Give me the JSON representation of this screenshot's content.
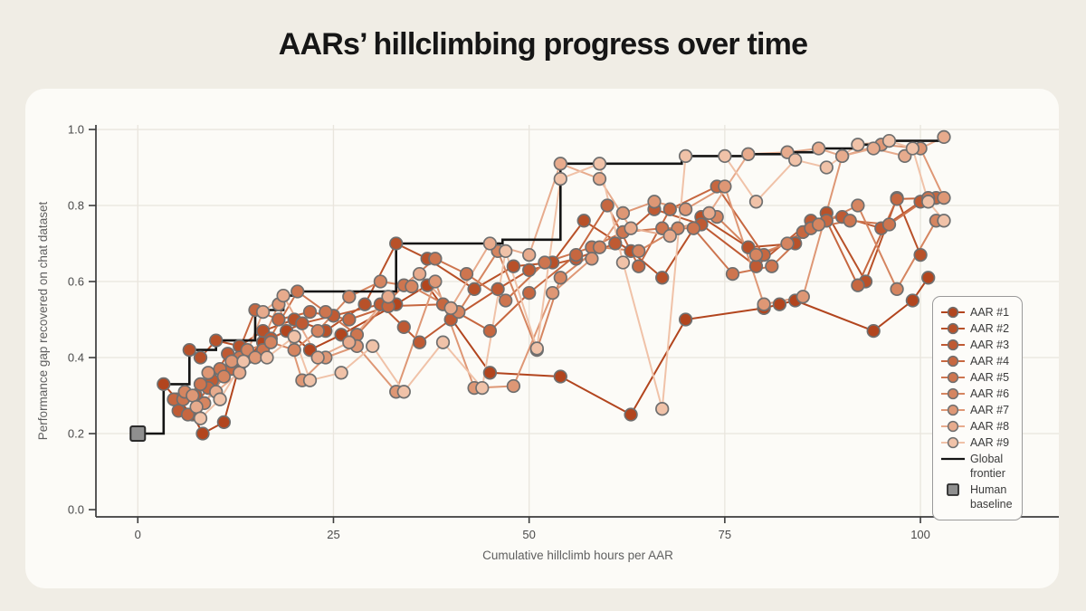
{
  "page": {
    "title": "AARs’ hillclimbing progress over time"
  },
  "colors": {
    "page_background": "#f0ede5",
    "card_background": "#fcfbf7",
    "grid": "#e9e5dd",
    "spine": "#3c3c3c",
    "tick_label": "#4a4a4a",
    "axis_title": "#5f5f5f",
    "marker_stroke": "#6f6f6f",
    "frontier": "#141414",
    "baseline_fill": "#8f8f8f",
    "baseline_stroke": "#2b2b2b"
  },
  "legend": {
    "frontier_label": "Global frontier",
    "baseline_label": "Human baseline"
  },
  "chart_data": {
    "type": "line-scatter",
    "title": "AARs’ hillclimbing progress over time",
    "xlabel": "Cumulative hillclimb hours per AAR",
    "ylabel": "Performance gap recovered on chat dataset",
    "x_ticks": [
      0,
      25,
      50,
      75,
      100
    ],
    "y_ticks": [
      0.0,
      0.2,
      0.4,
      0.6,
      0.8,
      1.0
    ],
    "xlim": [
      -5.35,
      117.8
    ],
    "ylim": [
      -0.019,
      1.012
    ],
    "grid": true,
    "legend_position": "right-inside",
    "baseline": {
      "name": "Human baseline",
      "x": 0,
      "y": 0.2
    },
    "frontier": {
      "name": "Global frontier",
      "style": "step-after",
      "points": [
        [
          0,
          0.2
        ],
        [
          3.3,
          0.33
        ],
        [
          6.6,
          0.42
        ],
        [
          10,
          0.445
        ],
        [
          15,
          0.525
        ],
        [
          18.6,
          0.563
        ],
        [
          20.4,
          0.574
        ],
        [
          33,
          0.7
        ],
        [
          46.6,
          0.71
        ],
        [
          54,
          0.91
        ],
        [
          69.5,
          0.93
        ],
        [
          78,
          0.935
        ],
        [
          83,
          0.94
        ],
        [
          87,
          0.95
        ],
        [
          92,
          0.96
        ],
        [
          96,
          0.97
        ],
        [
          103,
          0.98
        ]
      ]
    },
    "series": [
      {
        "name": "AAR #1",
        "color": "#b2451e",
        "points": [
          [
            3.3,
            0.33
          ],
          [
            5,
            0.29
          ],
          [
            7,
            0.25
          ],
          [
            8.3,
            0.2
          ],
          [
            11,
            0.23
          ],
          [
            13,
            0.38
          ],
          [
            16,
            0.44
          ],
          [
            19,
            0.47
          ],
          [
            22,
            0.42
          ],
          [
            26,
            0.46
          ],
          [
            33,
            0.54
          ],
          [
            37,
            0.59
          ],
          [
            45,
            0.36
          ],
          [
            54,
            0.35
          ],
          [
            63,
            0.25
          ],
          [
            70,
            0.5
          ],
          [
            80,
            0.53
          ],
          [
            82,
            0.54
          ],
          [
            84,
            0.55
          ],
          [
            94,
            0.47
          ],
          [
            99,
            0.55
          ],
          [
            101,
            0.61
          ]
        ]
      },
      {
        "name": "AAR #2",
        "color": "#b85129",
        "points": [
          [
            6.6,
            0.42
          ],
          [
            8,
            0.4
          ],
          [
            10,
            0.445
          ],
          [
            13,
            0.43
          ],
          [
            16,
            0.47
          ],
          [
            20,
            0.5
          ],
          [
            24,
            0.47
          ],
          [
            29,
            0.54
          ],
          [
            33,
            0.7
          ],
          [
            37,
            0.66
          ],
          [
            43,
            0.58
          ],
          [
            48,
            0.64
          ],
          [
            53,
            0.65
          ],
          [
            57,
            0.76
          ],
          [
            63,
            0.68
          ],
          [
            67,
            0.61
          ],
          [
            72,
            0.77
          ],
          [
            78,
            0.69
          ],
          [
            84,
            0.7
          ],
          [
            88,
            0.78
          ],
          [
            93,
            0.6
          ],
          [
            97,
            0.82
          ],
          [
            100,
            0.67
          ]
        ]
      },
      {
        "name": "AAR #3",
        "color": "#bf5a33",
        "points": [
          [
            5.2,
            0.26
          ],
          [
            7.4,
            0.3
          ],
          [
            9.5,
            0.34
          ],
          [
            11.5,
            0.41
          ],
          [
            14,
            0.4
          ],
          [
            17,
            0.45
          ],
          [
            21,
            0.49
          ],
          [
            25,
            0.51
          ],
          [
            31,
            0.54
          ],
          [
            34,
            0.48
          ],
          [
            36,
            0.44
          ],
          [
            40,
            0.5
          ],
          [
            46,
            0.58
          ],
          [
            50,
            0.63
          ],
          [
            56,
            0.66
          ],
          [
            61,
            0.7
          ],
          [
            66,
            0.79
          ],
          [
            72,
            0.75
          ],
          [
            79,
            0.64
          ],
          [
            86,
            0.76
          ],
          [
            90,
            0.77
          ],
          [
            95,
            0.74
          ],
          [
            100,
            0.81
          ]
        ]
      },
      {
        "name": "AAR #4",
        "color": "#c66740",
        "points": [
          [
            4.6,
            0.29
          ],
          [
            6.4,
            0.25
          ],
          [
            9,
            0.32
          ],
          [
            12,
            0.37
          ],
          [
            15,
            0.525
          ],
          [
            18,
            0.5
          ],
          [
            22,
            0.52
          ],
          [
            27,
            0.5
          ],
          [
            32,
            0.535
          ],
          [
            39,
            0.54
          ],
          [
            45,
            0.47
          ],
          [
            50,
            0.57
          ],
          [
            56,
            0.67
          ],
          [
            60,
            0.8
          ],
          [
            64,
            0.64
          ],
          [
            68,
            0.79
          ],
          [
            74,
            0.85
          ],
          [
            80,
            0.67
          ],
          [
            85,
            0.73
          ],
          [
            88,
            0.76
          ],
          [
            92,
            0.59
          ],
          [
            97,
            0.817
          ],
          [
            102,
            0.82
          ]
        ]
      },
      {
        "name": "AAR #5",
        "color": "#cd754f",
        "points": [
          [
            5.8,
            0.29
          ],
          [
            8,
            0.33
          ],
          [
            10.5,
            0.37
          ],
          [
            13,
            0.4
          ],
          [
            16,
            0.42
          ],
          [
            20.4,
            0.574
          ],
          [
            24,
            0.52
          ],
          [
            28,
            0.46
          ],
          [
            34,
            0.59
          ],
          [
            38,
            0.66
          ],
          [
            42,
            0.62
          ],
          [
            47,
            0.55
          ],
          [
            52,
            0.65
          ],
          [
            58,
            0.69
          ],
          [
            62,
            0.73
          ],
          [
            67,
            0.74
          ],
          [
            71,
            0.74
          ],
          [
            76,
            0.62
          ],
          [
            81,
            0.64
          ],
          [
            86,
            0.74
          ],
          [
            91,
            0.76
          ],
          [
            96,
            0.75
          ],
          [
            101,
            0.82
          ]
        ]
      },
      {
        "name": "AAR #6",
        "color": "#d58560",
        "points": [
          [
            6,
            0.31
          ],
          [
            8.5,
            0.28
          ],
          [
            11,
            0.35
          ],
          [
            14,
            0.42
          ],
          [
            17,
            0.44
          ],
          [
            20,
            0.42
          ],
          [
            23,
            0.47
          ],
          [
            27,
            0.56
          ],
          [
            31,
            0.6
          ],
          [
            35,
            0.587
          ],
          [
            41,
            0.52
          ],
          [
            46,
            0.68
          ],
          [
            51,
            0.42
          ],
          [
            54,
            0.61
          ],
          [
            59,
            0.69
          ],
          [
            64,
            0.68
          ],
          [
            69,
            0.74
          ],
          [
            74,
            0.77
          ],
          [
            79,
            0.67
          ],
          [
            83,
            0.7
          ],
          [
            87,
            0.75
          ],
          [
            92,
            0.8
          ],
          [
            97,
            0.58
          ],
          [
            102,
            0.76
          ]
        ]
      },
      {
        "name": "AAR #7",
        "color": "#de9775",
        "points": [
          [
            7,
            0.3
          ],
          [
            9,
            0.36
          ],
          [
            12,
            0.39
          ],
          [
            15,
            0.4
          ],
          [
            18,
            0.54
          ],
          [
            21,
            0.34
          ],
          [
            24,
            0.4
          ],
          [
            28,
            0.43
          ],
          [
            33,
            0.31
          ],
          [
            38,
            0.6
          ],
          [
            43,
            0.32
          ],
          [
            48,
            0.325
          ],
          [
            53,
            0.57
          ],
          [
            58,
            0.66
          ],
          [
            62,
            0.78
          ],
          [
            66,
            0.81
          ],
          [
            70,
            0.79
          ],
          [
            75,
            0.85
          ],
          [
            80,
            0.54
          ],
          [
            85,
            0.56
          ],
          [
            90,
            0.93
          ],
          [
            95,
            0.96
          ],
          [
            100,
            0.95
          ],
          [
            103,
            0.82
          ]
        ]
      },
      {
        "name": "AAR #8",
        "color": "#e7ab8d",
        "points": [
          [
            7.5,
            0.27
          ],
          [
            10,
            0.31
          ],
          [
            13,
            0.36
          ],
          [
            16,
            0.52
          ],
          [
            18.6,
            0.563
          ],
          [
            23,
            0.4
          ],
          [
            27,
            0.44
          ],
          [
            32,
            0.56
          ],
          [
            36,
            0.62
          ],
          [
            40,
            0.53
          ],
          [
            45,
            0.7
          ],
          [
            50,
            0.67
          ],
          [
            54,
            0.91
          ],
          [
            59,
            0.87
          ],
          [
            63,
            0.74
          ],
          [
            68,
            0.72
          ],
          [
            73,
            0.78
          ],
          [
            78,
            0.935
          ],
          [
            83,
            0.94
          ],
          [
            87,
            0.95
          ],
          [
            90,
            0.93
          ],
          [
            94,
            0.95
          ],
          [
            98,
            0.93
          ],
          [
            103,
            0.98
          ]
        ]
      },
      {
        "name": "AAR #9",
        "color": "#f0c2a8",
        "points": [
          [
            8,
            0.24
          ],
          [
            10.5,
            0.29
          ],
          [
            13.5,
            0.39
          ],
          [
            16.5,
            0.4
          ],
          [
            20,
            0.455
          ],
          [
            22,
            0.34
          ],
          [
            26,
            0.36
          ],
          [
            30,
            0.43
          ],
          [
            34,
            0.31
          ],
          [
            39,
            0.44
          ],
          [
            44,
            0.32
          ],
          [
            47,
            0.68
          ],
          [
            51,
            0.424
          ],
          [
            54,
            0.87
          ],
          [
            59,
            0.91
          ],
          [
            62,
            0.65
          ],
          [
            67,
            0.265
          ],
          [
            70,
            0.93
          ],
          [
            75,
            0.93
          ],
          [
            79,
            0.81
          ],
          [
            84,
            0.92
          ],
          [
            88,
            0.9
          ],
          [
            92,
            0.96
          ],
          [
            96,
            0.97
          ],
          [
            99,
            0.95
          ],
          [
            101,
            0.81
          ],
          [
            103,
            0.76
          ]
        ]
      }
    ]
  }
}
